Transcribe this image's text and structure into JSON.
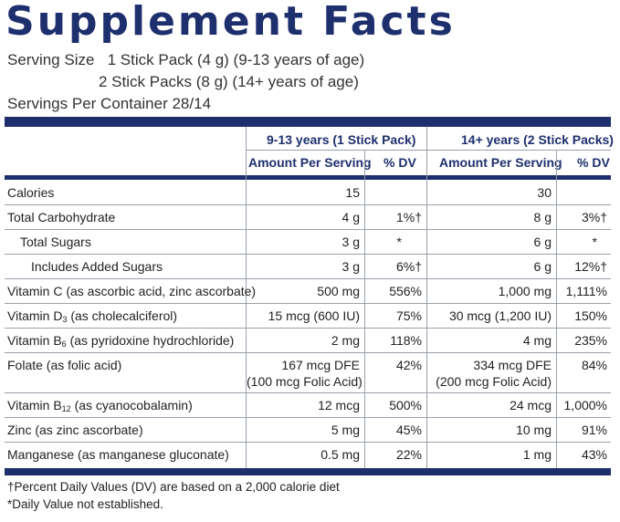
{
  "title": "Supplement Facts",
  "serving": {
    "line1_label": "Serving Size",
    "line1_value": "1 Stick Pack (4 g) (9-13 years of age)",
    "line2_value": "2 Stick Packs (8 g) (14+ years of age)",
    "line3": "Servings Per Container 28/14"
  },
  "columns": {
    "group1": "9-13 years (1 Stick Pack)",
    "group2": "14+ years (2 Stick Packs)",
    "amount": "Amount Per Serving",
    "dv": "% DV"
  },
  "rows": [
    {
      "label": "Calories",
      "indent": 0,
      "a1": "15",
      "d1": "",
      "a2": "30",
      "d2": ""
    },
    {
      "label": "Total Carbohydrate",
      "indent": 0,
      "a1": "4 g",
      "d1": "1%†",
      "a2": "8 g",
      "d2": "3%†"
    },
    {
      "label": "Total Sugars",
      "indent": 1,
      "a1": "3 g",
      "d1": "*",
      "a2": "6 g",
      "d2": "*"
    },
    {
      "label": "Includes Added Sugars",
      "indent": 2,
      "a1": "3 g",
      "d1": "6%†",
      "a2": "6 g",
      "d2": "12%†"
    },
    {
      "label": "Vitamin C (as ascorbic acid, zinc ascorbate)",
      "indent": 0,
      "a1": "500 mg",
      "d1": "556%",
      "a2": "1,000 mg",
      "d2": "1,111%"
    },
    {
      "label_pre": "Vitamin D",
      "label_sub": "3",
      "label_post": " (as cholecalciferol)",
      "indent": 0,
      "a1": "15 mcg (600 IU)",
      "d1": "75%",
      "a2": "30 mcg (1,200 IU)",
      "d2": "150%"
    },
    {
      "label_pre": "Vitamin B",
      "label_sub": "6",
      "label_post": " (as pyridoxine hydrochloride)",
      "indent": 0,
      "a1": "2 mg",
      "d1": "118%",
      "a2": "4 mg",
      "d2": "235%"
    },
    {
      "label": "Folate (as folic acid)",
      "indent": 0,
      "a1": "167 mcg DFE",
      "a1b": "(100 mcg Folic Acid)",
      "d1": "42%",
      "a2": "334 mcg DFE",
      "a2b": "(200 mcg Folic Acid)",
      "d2": "84%"
    },
    {
      "label_pre": "Vitamin B",
      "label_sub": "12",
      "label_post": " (as cyanocobalamin)",
      "indent": 0,
      "a1": "12 mcg",
      "d1": "500%",
      "a2": "24 mcg",
      "d2": "1,000%"
    },
    {
      "label": "Zinc (as zinc ascorbate)",
      "indent": 0,
      "a1": "5 mg",
      "d1": "45%",
      "a2": "10 mg",
      "d2": "91%"
    },
    {
      "label": "Manganese (as manganese gluconate)",
      "indent": 0,
      "a1": "0.5 mg",
      "d1": "22%",
      "a2": "1 mg",
      "d2": "43%"
    }
  ],
  "footnotes": {
    "dagger": "†Percent Daily Values (DV) are based on a 2,000 calorie diet",
    "asterisk": "*Daily Value not established."
  }
}
